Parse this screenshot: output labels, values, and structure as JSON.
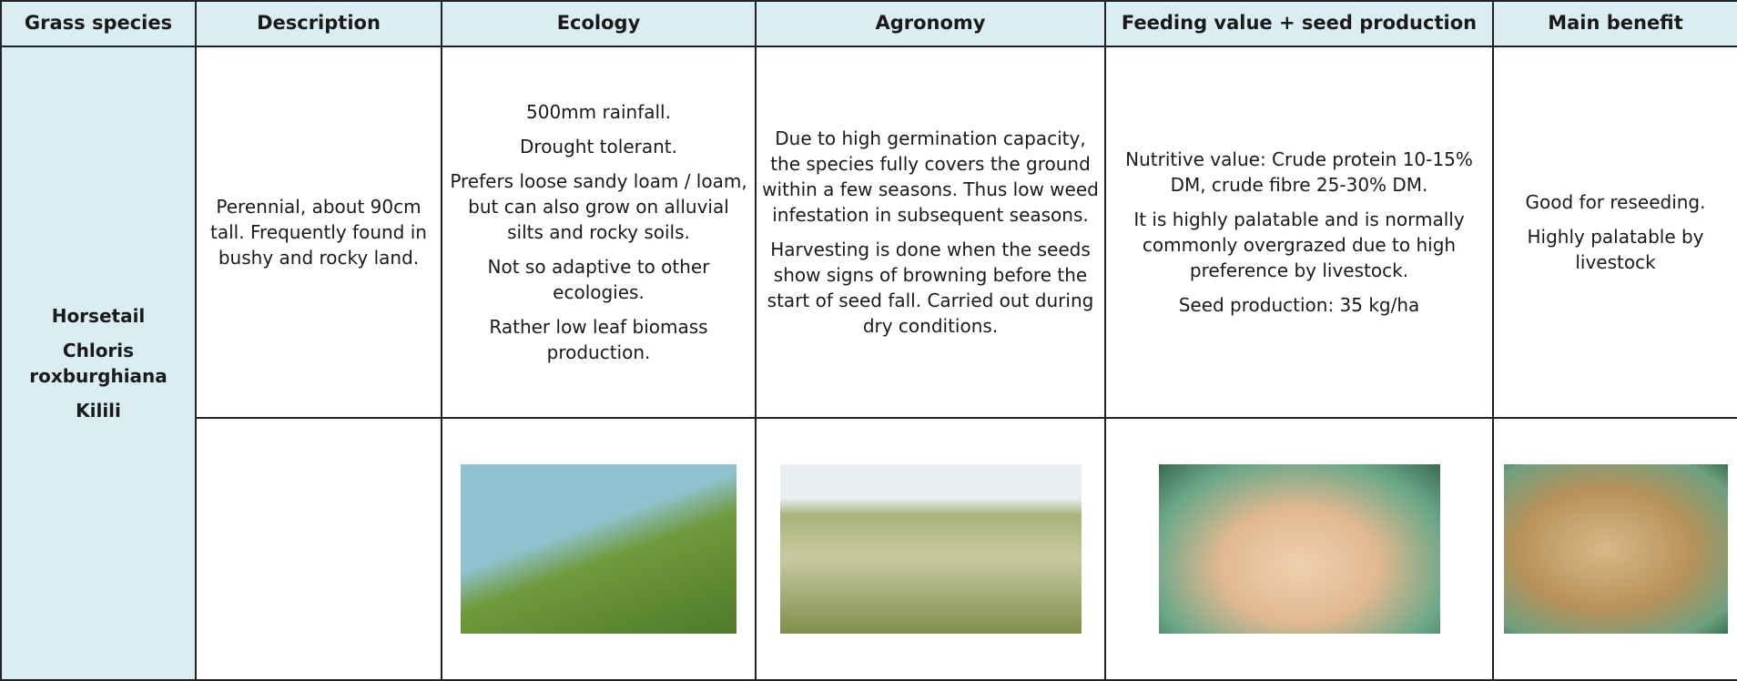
{
  "table": {
    "headers": [
      "Grass species",
      "Description",
      "Ecology",
      "Agronomy",
      "Feeding value + seed production",
      "Main benefit"
    ],
    "species": [
      "Horsetail",
      "Chloris roxburghiana",
      "Kilili"
    ],
    "rows": [
      [
        [
          "Perennial, about 90cm tall. Frequently found in bushy and rocky land."
        ],
        [
          "500mm rainfall.",
          "Drought tolerant.",
          "Prefers loose sandy loam / loam, but can also grow on alluvial silts and rocky soils.",
          "Not so adaptive to other ecologies.",
          "Rather low leaf biomass production."
        ],
        [
          "Due to high germination capacity, the species fully covers the ground within a few seasons. Thus low weed infestation in subsequent seasons.",
          "Harvesting is done when the seeds show signs of browning before the start of seed fall. Carried out during dry conditions."
        ],
        [
          "Nutritive value: Crude protein 10-15% DM, crude fibre 25-30% DM.",
          "It is highly palatable and is normally commonly overgrazed due to high preference by livestock.",
          "Seed production: 35 kg/ha"
        ],
        [
          "Good for reseeding.",
          "Highly palatable by livestock"
        ]
      ]
    ]
  }
}
